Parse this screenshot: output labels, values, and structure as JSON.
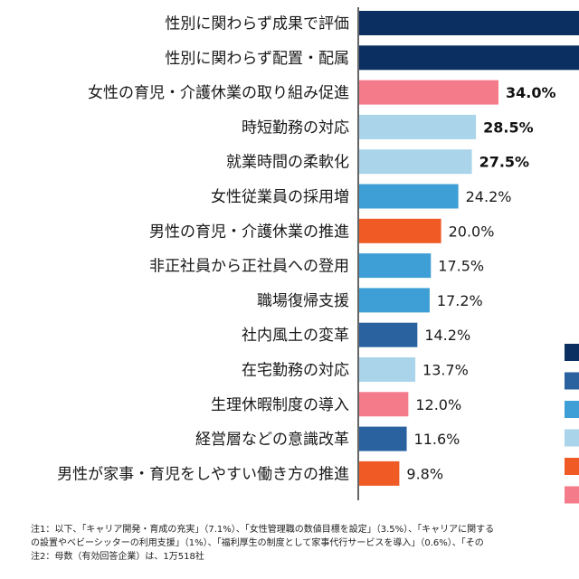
{
  "chart_data": {
    "type": "bar",
    "orientation": "horizontal",
    "categories": [
      "性別に関わらず成果で評価",
      "性別に関わらず配置・配属",
      "女性の育児・介護休業の取り組み促進",
      "時短勤務の対応",
      "就業時間の柔軟化",
      "女性従業員の採用増",
      "男性の育児・介護休業の推進",
      "非正社員から正社員への登用",
      "職場復帰支援",
      "社内風土の変革",
      "在宅勤務の対応",
      "生理休暇制度の導入",
      "経営層などの意識改革",
      "男性が家事・育児をしやすい働き方の推進"
    ],
    "values": [
      null,
      null,
      34.0,
      28.5,
      27.5,
      24.2,
      20.0,
      17.5,
      17.2,
      14.2,
      13.7,
      12.0,
      11.6,
      9.8
    ],
    "value_labels": [
      "",
      "",
      "34.0%",
      "28.5%",
      "27.5%",
      "24.2%",
      "20.0%",
      "17.5%",
      "17.2%",
      "14.2%",
      "13.7%",
      "12.0%",
      "11.6%",
      "9.8%"
    ],
    "bold_labels": [
      false,
      false,
      true,
      true,
      true,
      false,
      false,
      false,
      false,
      false,
      false,
      false,
      false,
      false
    ],
    "bar_colors": [
      "#0c2f61",
      "#0c2f61",
      "#f47b8a",
      "#a9d4ea",
      "#a9d4ea",
      "#3d9fd5",
      "#f05a25",
      "#3d9fd5",
      "#3d9fd5",
      "#2a62a0",
      "#a9d4ea",
      "#f47b8a",
      "#2a62a0",
      "#f05a25"
    ],
    "xlim": [
      0,
      58
    ],
    "title": "",
    "xlabel": "",
    "ylabel": "",
    "legend_swatch_colors": [
      "#0c2f61",
      "#2a62a0",
      "#3d9fd5",
      "#a9d4ea",
      "#f05a25",
      "#f47b8a"
    ],
    "legend_placement": "right"
  },
  "notes": {
    "line1": "注1：以下、「キャリア開発・育成の充実」（7.1%）、「女性管理職の数値目標を設定」（3.5%）、「キャリアに関する",
    "line2": "の設置やベビーシッターの利用支援」（1%）、「福利厚生の制度として家事代行サービスを導入」（0.6%）、「その",
    "line3": "注2：母数（有効回答企業）は、1万518社"
  }
}
